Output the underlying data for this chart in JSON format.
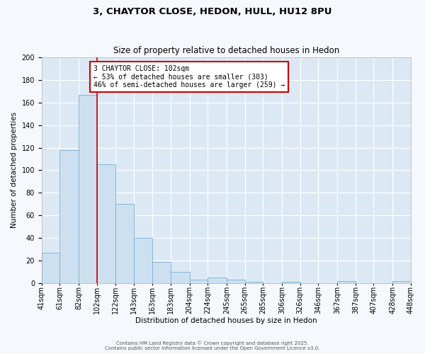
{
  "title": "3, CHAYTOR CLOSE, HEDON, HULL, HU12 8PU",
  "subtitle": "Size of property relative to detached houses in Hedon",
  "xlabel": "Distribution of detached houses by size in Hedon",
  "ylabel": "Number of detached properties",
  "bar_color": "#cce0f0",
  "bar_edge_color": "#7aafd4",
  "background_color": "#dce9f5",
  "fig_background_color": "#f5f8fc",
  "grid_color": "#ffffff",
  "vline_value": 102,
  "vline_color": "#cc0000",
  "bin_edges": [
    41,
    61,
    82,
    102,
    122,
    143,
    163,
    183,
    204,
    224,
    245,
    265,
    285,
    306,
    326,
    346,
    367,
    387,
    407,
    428,
    448
  ],
  "bin_labels": [
    "41sqm",
    "61sqm",
    "82sqm",
    "102sqm",
    "122sqm",
    "143sqm",
    "163sqm",
    "183sqm",
    "204sqm",
    "224sqm",
    "245sqm",
    "265sqm",
    "285sqm",
    "306sqm",
    "326sqm",
    "346sqm",
    "367sqm",
    "387sqm",
    "407sqm",
    "428sqm",
    "448sqm"
  ],
  "counts": [
    27,
    118,
    167,
    105,
    70,
    40,
    19,
    10,
    3,
    5,
    3,
    1,
    0,
    1,
    0,
    0,
    2,
    0,
    0,
    2
  ],
  "annotation_title": "3 CHAYTOR CLOSE: 102sqm",
  "annotation_line1": "← 53% of detached houses are smaller (303)",
  "annotation_line2": "46% of semi-detached houses are larger (259) →",
  "annotation_box_color": "#ffffff",
  "annotation_box_edge": "#cc0000",
  "footnote1": "Contains HM Land Registry data © Crown copyright and database right 2025.",
  "footnote2": "Contains public sector information licensed under the Open Government Licence v3.0.",
  "ylim": [
    0,
    200
  ],
  "yticks": [
    0,
    20,
    40,
    60,
    80,
    100,
    120,
    140,
    160,
    180,
    200
  ],
  "title_fontsize": 9.5,
  "subtitle_fontsize": 8.5,
  "ylabel_fontsize": 7.5,
  "xlabel_fontsize": 7.5,
  "tick_fontsize": 7,
  "annot_fontsize": 7,
  "footnote_fontsize": 5
}
